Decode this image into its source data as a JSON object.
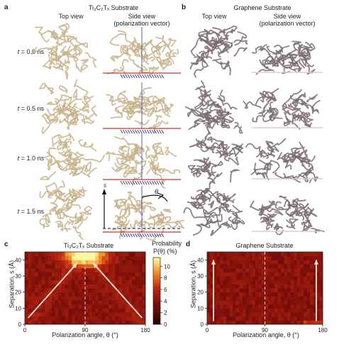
{
  "panels": {
    "a": {
      "letter": "a",
      "title": "Ti₃C₂Tₓ Substrate",
      "col_top": "Top view",
      "col_side_1": "Side view",
      "col_side_2": "(polarization vector)",
      "rows": [
        {
          "t_label": "t",
          "t_value": "= 0.0 ns"
        },
        {
          "t_label": "t",
          "t_value": "= 0.5 ns"
        },
        {
          "t_label": "t",
          "t_value": "= 1.0 ns"
        },
        {
          "t_label": "t",
          "t_value": "= 1.5 ns"
        }
      ],
      "axis_s": "s",
      "axis_theta": "θ"
    },
    "b": {
      "letter": "b",
      "title": "Graphene Substrate",
      "col_top": "Top view",
      "col_side_1": "Side view",
      "col_side_2": "(polarization vector)"
    },
    "c": {
      "letter": "c"
    },
    "d": {
      "letter": "d"
    }
  },
  "colorbar": {
    "label_1": "Probability",
    "label_2": "P(θ) (%)",
    "ticks": [
      "0",
      "2",
      "4",
      "6",
      "8",
      "10"
    ]
  },
  "colors": {
    "polymer_c": "#c7b28a",
    "polymer_g": "#7a6a72",
    "heat_low": "#3a0a0a",
    "heat_high": "#fff6a0",
    "substrate_line": "#c0392b"
  },
  "chart_data": [
    {
      "type": "heatmap",
      "title": "Ti₃C₂Tₓ Substrate",
      "xlabel": "Polarization angle, θ (°)",
      "ylabel": "Separation, s (Å)",
      "xlim": [
        0,
        180
      ],
      "ylim": [
        0,
        45
      ],
      "xticks": [
        "0",
        "90",
        "180"
      ],
      "yticks": [
        "0",
        "10",
        "20",
        "30",
        "40"
      ],
      "hotspot": {
        "theta": 90,
        "s": 43
      },
      "dashed_line_theta": 90,
      "arrows": [
        {
          "from": [
            5,
            4
          ],
          "to": [
            78,
            38
          ]
        },
        {
          "from": [
            175,
            4
          ],
          "to": [
            102,
            38
          ]
        }
      ]
    },
    {
      "type": "heatmap",
      "title": "Graphene Substrate",
      "xlabel": "Polarization angle, θ (°)",
      "ylabel": "Separation, s (Å)",
      "xlim": [
        0,
        180
      ],
      "ylim": [
        0,
        45
      ],
      "xticks": [
        "0",
        "90",
        "180"
      ],
      "yticks": [
        "0",
        "10",
        "20",
        "30",
        "40"
      ],
      "dashed_line_theta": 90,
      "arrows": [
        {
          "from": [
            10,
            2
          ],
          "to": [
            10,
            40
          ]
        },
        {
          "from": [
            170,
            2
          ],
          "to": [
            170,
            40
          ]
        }
      ]
    }
  ]
}
